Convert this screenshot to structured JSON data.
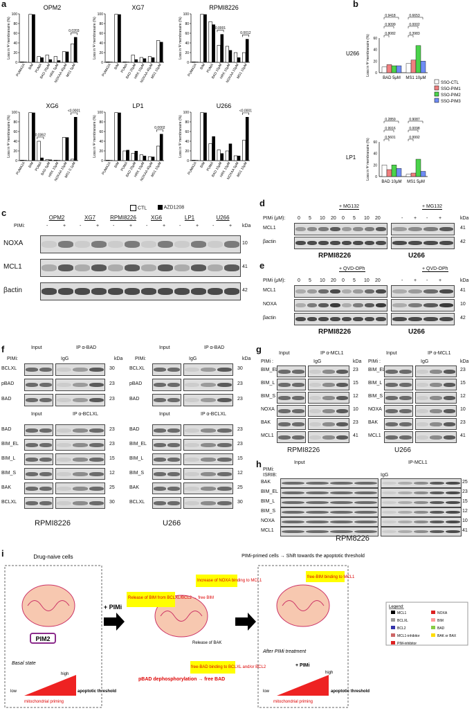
{
  "panel_labels": {
    "a": "a",
    "b": "b",
    "c": "c",
    "d": "d",
    "e": "e",
    "f": "f",
    "g": "g",
    "h": "h",
    "i": "i"
  },
  "panel_a": {
    "ylabel": "Loss in Ψ membranaire (%)",
    "yticks": [
      "0",
      "20",
      "40",
      "60",
      "80",
      "100"
    ],
    "legend": {
      "ctl": "CTL",
      "azd": "AZD1208"
    },
    "charts": [
      {
        "title": "OPM2",
        "categories": [
          "PUMA2A",
          "BIM",
          "PUMA",
          "BAD 20μM",
          "HRK 5μM",
          "NOXAA 40μM",
          "MS1 5μM"
        ],
        "ctl": [
          1,
          99,
          12,
          15,
          12,
          22,
          38
        ],
        "azd": [
          1,
          99,
          10,
          6,
          4,
          22,
          52
        ],
        "pval": "0.0203",
        "pidx": 6
      },
      {
        "title": "XG7",
        "categories": [
          "PUMA2A",
          "BIM",
          "PUMA",
          "BAD 20μM",
          "HRK 10μM",
          "NOXAA 40μM",
          "MS1 10μM"
        ],
        "ctl": [
          1,
          99,
          1,
          15,
          10,
          12,
          45
        ],
        "azd": [
          1,
          99,
          1,
          6,
          8,
          10,
          42
        ],
        "pval": "",
        "pidx": -1
      },
      {
        "title": "RPMI8226",
        "categories": [
          "PUMA2A",
          "BIM",
          "PUMA",
          "BAD 10μM",
          "HRK 10μM",
          "NOXAA 10μM",
          "MS1 10μM"
        ],
        "ctl": [
          1,
          99,
          84,
          35,
          33,
          20,
          20
        ],
        "azd": [
          1,
          99,
          78,
          58,
          25,
          10,
          48
        ],
        "pval": "0.0001",
        "pidx": 3,
        "pval2": "0.0012",
        "pidx2": 6
      },
      {
        "title": "XG6",
        "categories": [
          "PUMA2A",
          "BIM",
          "PUMA",
          "BAD 5μM",
          "HRK 10μM",
          "NOXAA 10μM",
          "MS1 0.1μM"
        ],
        "ctl": [
          1,
          99,
          40,
          2,
          1,
          48,
          3
        ],
        "azd": [
          1,
          99,
          6,
          2,
          1,
          48,
          90
        ],
        "pval": "0.0362",
        "pidx": 2,
        "pval2": "<0.0001",
        "pidx2": 6
      },
      {
        "title": "LP1",
        "categories": [
          "PUMA2A",
          "BIM",
          "PUMA",
          "BAD 20μM",
          "HRK 10μM",
          "NOXAA 40μM",
          "MS1 10μM"
        ],
        "ctl": [
          1,
          99,
          20,
          15,
          12,
          8,
          30
        ],
        "azd": [
          1,
          99,
          22,
          20,
          10,
          8,
          55
        ],
        "pval": "0.0002",
        "pidx": 6
      },
      {
        "title": "U266",
        "categories": [
          "PUMA2A",
          "BIM",
          "PUMA",
          "BAD 10μM",
          "HRK 10μM",
          "NOXAA 5μM",
          "MS1 10μM"
        ],
        "ctl": [
          1,
          99,
          35,
          22,
          20,
          10,
          42
        ],
        "azd": [
          1,
          99,
          50,
          15,
          35,
          10,
          90
        ],
        "pval": "<0.0001",
        "pidx": 6
      }
    ]
  },
  "panel_b": {
    "ylabel": "Loss in Ψ membranaire (%)",
    "legend": [
      "SSO-CTL",
      "SSO-PIM1",
      "SSO-PIM2",
      "SSO-PIM3"
    ],
    "colors": [
      "#ffffff",
      "#f08080",
      "#4bd34b",
      "#6f8cf5"
    ],
    "charts": [
      {
        "cell": "U266",
        "categories": [
          "BAD 5μM",
          "MS1 10μM"
        ],
        "ymax": 60,
        "yticks": [
          "0",
          "20",
          "40",
          "60"
        ],
        "values": [
          [
            10,
            14,
            12,
            12
          ],
          [
            16,
            22,
            47,
            20
          ]
        ],
        "pvals_a": [
          "0.9418",
          "0.9099",
          "0.8082"
        ],
        "pvals_b": [
          "0.6653",
          "0.0002",
          "0.3983"
        ]
      },
      {
        "cell": "LP1",
        "categories": [
          "BAD 10μM",
          "MS1 5μM"
        ],
        "ymax": 60,
        "yticks": [
          "0",
          "20",
          "40",
          "60"
        ],
        "values": [
          [
            20,
            12,
            20,
            14
          ],
          [
            4,
            6,
            30,
            9
          ]
        ],
        "pvals_a": [
          "0.2859",
          "0.9916",
          "0.5601"
        ],
        "pvals_b": [
          "0.9087",
          "0.0098",
          "0.9992"
        ]
      }
    ]
  },
  "panel_c": {
    "cells": [
      "OPM2",
      "XG7",
      "RPMI8226",
      "XG6",
      "LP1",
      "U266"
    ],
    "pimi_label": "PIMi:",
    "signs": [
      "-",
      "+"
    ],
    "rows": [
      "NOXA",
      "MCL1",
      "βactin"
    ],
    "kda_label": "kDa",
    "kda": [
      "10",
      "41",
      "42"
    ]
  },
  "panel_d": {
    "pimi_label": "PIMi (μM):",
    "doses": [
      "0",
      "5",
      "10",
      "20",
      "0",
      "5",
      "10",
      "20"
    ],
    "treat_label": "+ MG132",
    "u266_signs": [
      "-",
      "+",
      "-",
      "+"
    ],
    "rows": [
      "MCL1",
      "βactin"
    ],
    "kda_label": "kDa",
    "kda": [
      "41",
      "42"
    ],
    "cells": [
      "RPMI8226",
      "U266"
    ]
  },
  "panel_e": {
    "pimi_label": "PIMi (μM):",
    "doses": [
      "0",
      "5",
      "10",
      "20",
      "0",
      "5",
      "10",
      "20"
    ],
    "treat_label": "+ QVD-OPh",
    "u266_signs": [
      "-",
      "+",
      "-",
      "+"
    ],
    "rows": [
      "MCL1",
      "NOXA",
      "βactin"
    ],
    "kda_label": "kDa",
    "kda": [
      "41",
      "10",
      "42"
    ],
    "cells": [
      "RPMI8226",
      "U266"
    ]
  },
  "panel_f": {
    "input": "Input",
    "ip_bad": "IP α-BAD",
    "ip_bclxl": "IP α-BCLXL",
    "pimi": "PIMi:",
    "igg": "IgG",
    "kda_label": "kDa",
    "rows_top": [
      "BCLXL",
      "pBAD",
      "BAD"
    ],
    "kda_top": [
      "30",
      "23",
      "23"
    ],
    "rows_bottom": [
      "BAD",
      "BIM_EL",
      "BIM_L",
      "BIM_S",
      "BAK",
      "BCLXL"
    ],
    "kda_bottom": [
      "23",
      "23",
      "15",
      "12",
      "25",
      "30"
    ],
    "cells": [
      "RPMI8226",
      "U266"
    ]
  },
  "panel_g": {
    "input": "Input",
    "ip": "IP α-MCL1",
    "pimi": "PIMi :",
    "igg": "IgG",
    "kda_label": "kDa",
    "rows": [
      "BIM_EL",
      "BIM_L",
      "BIM_S",
      "NOXA",
      "BAK",
      "MCL1"
    ],
    "kda": [
      "23",
      "15",
      "12",
      "10",
      "23",
      "41"
    ],
    "cells": [
      "RPMI8226",
      "U266"
    ]
  },
  "panel_h": {
    "input": "Input",
    "ip": "IP-MCL1",
    "pimi": "PIMi:",
    "isrib": "ISRIB:",
    "igg": "IgG",
    "rows": [
      "BAK",
      "BIM_EL",
      "BIM_L",
      "BIM_S",
      "NOXA",
      "MCL1"
    ],
    "kda": [
      "25",
      "23",
      "15",
      "12",
      "10",
      "41"
    ],
    "cell": "RPM8226"
  },
  "panel_i": {
    "box1_title": "Drug-naive cells",
    "arrow1": "+ PIMi",
    "pim2": "PIM2",
    "basal": "Basal state",
    "high": "high",
    "low": "low",
    "apoptotic": "apoptotic threshold",
    "priming": "mitochondrial priming",
    "release_bim": "Release of BIM from BCLXL/BCL2 → free BIM",
    "increase_noxa": "Increase of NOXA binding to MCL1",
    "release_bak": "Release of BAK",
    "pbad": "pBAD dephosphorylation → free BAD",
    "free_bad": "free-BAD binding to BCLXL and/or BCL2",
    "box3_title": "PIMi-primed cells → Shift towards the apoptotic threshold",
    "free_bim": "free-BIM binding to MCL1",
    "after": "After PIMi treatment",
    "plus_pimi": "+ PIMi",
    "legend_title": "Legend:",
    "legend_items": [
      "MCL1",
      "NOXA",
      "BCLXL",
      "BIM",
      "BCL2",
      "BAD",
      "MCL1-inhibitor",
      "BAK or BAX",
      "PIM-inhibitor"
    ]
  }
}
